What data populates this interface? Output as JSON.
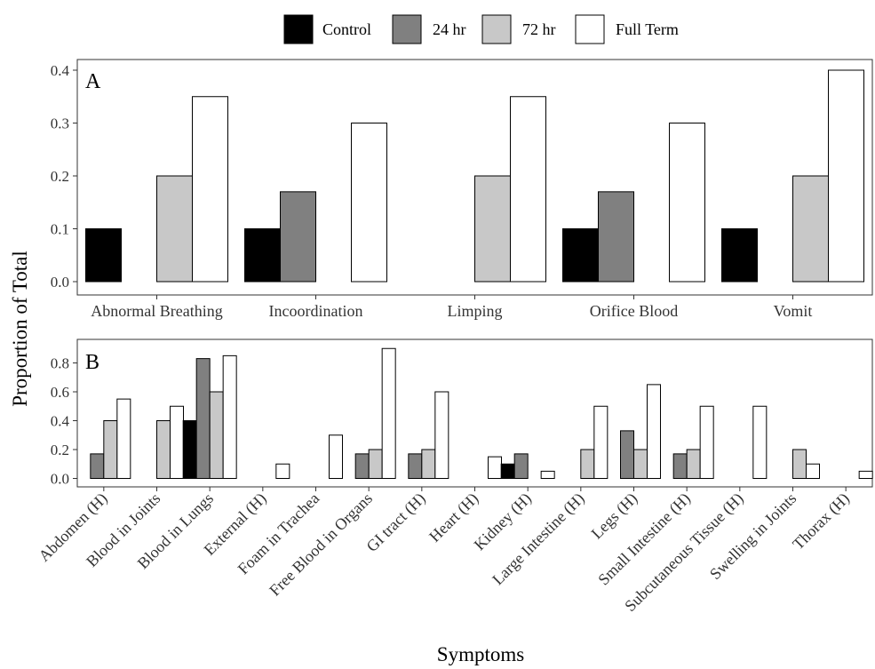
{
  "chart_data": {
    "type": "bar",
    "ylabel": "Proportion of Total",
    "xlabel": "Symptoms",
    "legend": {
      "placement": "top",
      "entries": [
        {
          "name": "Control",
          "color": "#000000"
        },
        {
          "name": "24 hr",
          "color": "#808080"
        },
        {
          "name": "72 hr",
          "color": "#c8c8c8"
        },
        {
          "name": "Full Term",
          "color": "#ffffff"
        }
      ]
    },
    "panels": [
      {
        "label": "A",
        "categories": [
          "Abnormal Breathing",
          "Incoordination",
          "Limping",
          "Orifice Blood",
          "Vomit"
        ],
        "ylim": [
          0,
          0.4
        ],
        "yticks": [
          "0.0",
          "0.1",
          "0.2",
          "0.3",
          "0.4"
        ],
        "series": [
          {
            "name": "Control",
            "values": [
              0.1,
              0.1,
              0.0,
              0.1,
              0.1
            ]
          },
          {
            "name": "24 hr",
            "values": [
              0.0,
              0.17,
              0.0,
              0.17,
              0.0
            ]
          },
          {
            "name": "72 hr",
            "values": [
              0.2,
              0.0,
              0.2,
              0.0,
              0.2
            ]
          },
          {
            "name": "Full Term",
            "values": [
              0.35,
              0.3,
              0.35,
              0.3,
              0.4
            ]
          }
        ]
      },
      {
        "label": "B",
        "categories": [
          "Abdomen (H)",
          "Blood in Joints",
          "Blood in Lungs",
          "External (H)",
          "Foam in Trachea",
          "Free Blood in Organs",
          "GI tract (H)",
          "Heart (H)",
          "Kidney (H)",
          "Large Intestine (H)",
          "Legs (H)",
          "Small Intestine (H)",
          "Subcutaneous Tissue (H)",
          "Swelling in Joints",
          "Thorax (H)"
        ],
        "ylim": [
          0,
          0.9
        ],
        "yticks": [
          "0.0",
          "0.2",
          "0.4",
          "0.6",
          "0.8"
        ],
        "series": [
          {
            "name": "Control",
            "values": [
              0,
              0,
              0.4,
              0,
              0,
              0,
              0,
              0,
              0.1,
              0,
              0,
              0,
              0,
              0,
              0
            ]
          },
          {
            "name": "24 hr",
            "values": [
              0.17,
              0,
              0.83,
              0,
              0,
              0.17,
              0.17,
              0,
              0.17,
              0,
              0.33,
              0.17,
              0,
              0,
              0
            ]
          },
          {
            "name": "72 hr",
            "values": [
              0.4,
              0.4,
              0.6,
              0,
              0,
              0.2,
              0.2,
              0,
              0,
              0.2,
              0.2,
              0.2,
              0,
              0.2,
              0
            ]
          },
          {
            "name": "Full Term",
            "values": [
              0.55,
              0.5,
              0.85,
              0.1,
              0.3,
              0.9,
              0.6,
              0.15,
              0.05,
              0.5,
              0.65,
              0.5,
              0.5,
              0.1,
              0.05
            ]
          }
        ]
      }
    ]
  }
}
